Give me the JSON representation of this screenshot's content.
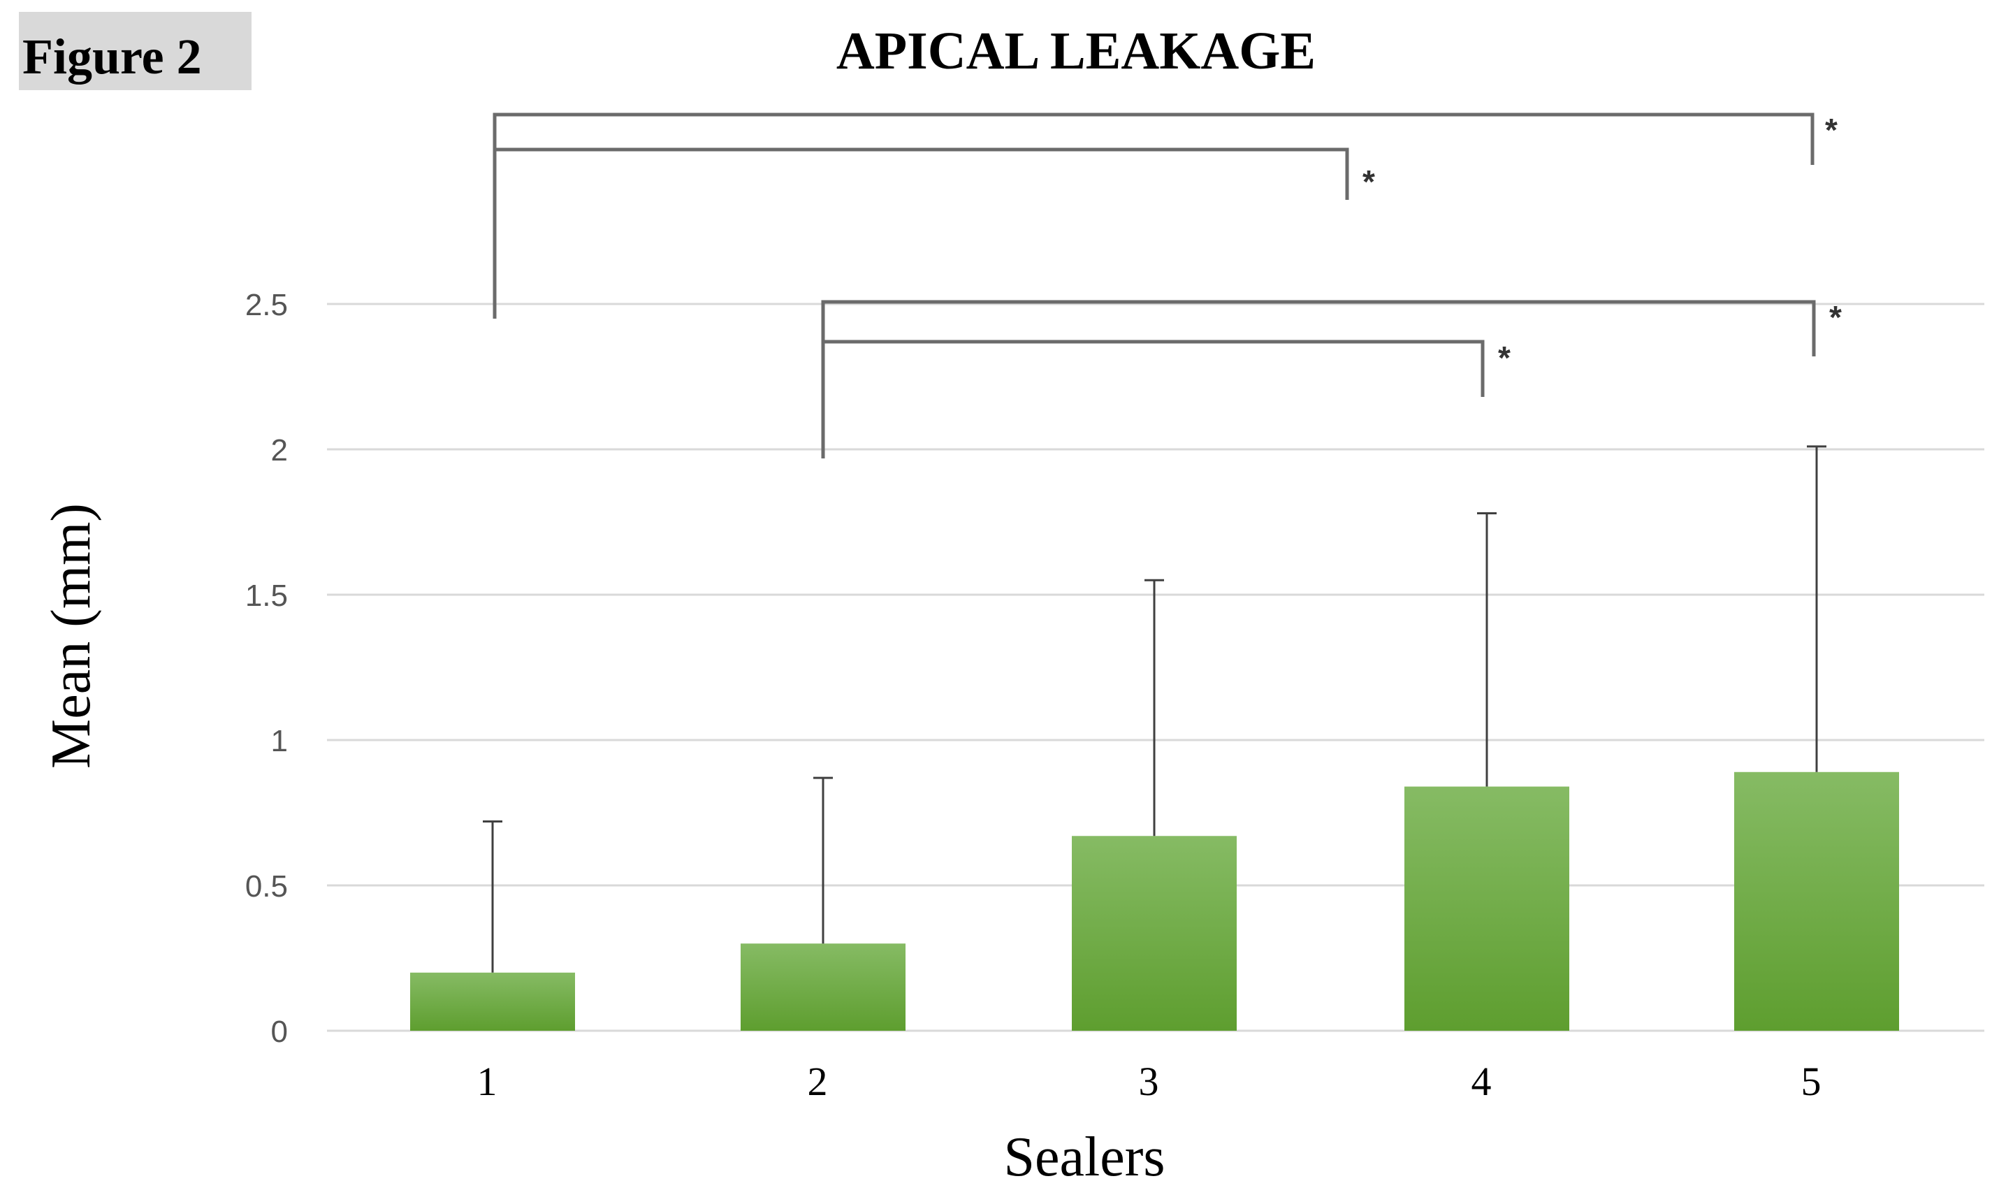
{
  "figure_label": "Figure 2",
  "chart_data": {
    "type": "bar",
    "title": "APICAL LEAKAGE",
    "xlabel": "Sealers",
    "ylabel": "Mean (mm)",
    "categories": [
      "1",
      "2",
      "3",
      "4",
      "5"
    ],
    "values": [
      0.2,
      0.3,
      0.67,
      0.84,
      0.89
    ],
    "error_upper": [
      0.72,
      0.87,
      1.55,
      1.78,
      2.01
    ],
    "ylim": [
      0,
      2.5
    ],
    "y_ticks": [
      0,
      0.5,
      1,
      1.5,
      2,
      2.5
    ],
    "y_tick_labels": [
      "0",
      "0.5",
      "1",
      "1.5",
      "2",
      "2.5"
    ],
    "grid": true,
    "colors": {
      "bar_top": "#86bb64",
      "bar_bottom": "#5e9e2f",
      "grid": "#d9d9d9",
      "bracket": "#6b6b6b"
    },
    "significance": [
      {
        "from": "1",
        "to": "5",
        "label": "*"
      },
      {
        "from": "1",
        "to": "4",
        "label": "*"
      },
      {
        "from": "2",
        "to": "5",
        "label": "*"
      },
      {
        "from": "2",
        "to": "4",
        "label": "*"
      }
    ]
  }
}
